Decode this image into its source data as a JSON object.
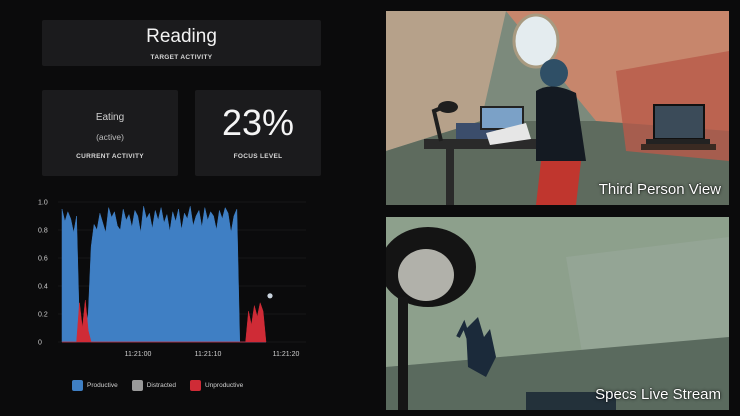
{
  "target": {
    "value": "Reading",
    "caption": "TARGET ACTIVITY"
  },
  "current": {
    "activity": "Eating",
    "state": "(active)",
    "caption": "CURRENT ACTIVITY"
  },
  "focus": {
    "value": "23%",
    "caption": "FOCUS LEVEL"
  },
  "legend": [
    {
      "label": "Productive",
      "color": "#3f7fc4"
    },
    {
      "label": "Distracted",
      "color": "#9a9a9a"
    },
    {
      "label": "Unproductive",
      "color": "#cf2b36"
    }
  ],
  "chart_data": {
    "type": "area",
    "y_ticks": [
      "0",
      "0.2",
      "0.4",
      "0.6",
      "0.8",
      "1.0"
    ],
    "x_ticks": [
      "11:21:00",
      "11:21:10",
      "11:21:20"
    ],
    "ylim": [
      0,
      1
    ],
    "series": [
      {
        "name": "Productive",
        "color": "#3f7fc4",
        "values": [
          0.95,
          0.86,
          0.93,
          0.88,
          0.78,
          0.9,
          0.1,
          0.1,
          0.1,
          0.2,
          0.68,
          0.84,
          0.8,
          0.92,
          0.85,
          0.78,
          0.96,
          0.89,
          0.93,
          0.83,
          0.8,
          0.95,
          0.87,
          0.91,
          0.82,
          0.94,
          0.9,
          0.78,
          0.97,
          0.88,
          0.92,
          0.81,
          0.94,
          0.87,
          0.96,
          0.85,
          0.91,
          0.79,
          0.93,
          0.86,
          0.95,
          0.8,
          0.92,
          0.88,
          0.97,
          0.83,
          0.9,
          0.94,
          0.82,
          0.96,
          0.87,
          0.93,
          0.9,
          0.8,
          0.94,
          0.88,
          0.96,
          0.92,
          0.78,
          0.9,
          0.95,
          0,
          0,
          0,
          0,
          0,
          0,
          0,
          0,
          0,
          0
        ]
      },
      {
        "name": "Unproductive",
        "color": "#cf2b36",
        "values": [
          0,
          0,
          0,
          0,
          0,
          0,
          0.28,
          0.1,
          0.3,
          0.08,
          0,
          0,
          0,
          0,
          0,
          0,
          0,
          0,
          0,
          0,
          0,
          0,
          0,
          0,
          0,
          0,
          0,
          0,
          0,
          0,
          0,
          0,
          0,
          0,
          0,
          0,
          0,
          0,
          0,
          0,
          0,
          0,
          0,
          0,
          0,
          0,
          0,
          0,
          0,
          0,
          0,
          0,
          0,
          0,
          0,
          0,
          0,
          0,
          0,
          0,
          0,
          0,
          0,
          0,
          0.22,
          0.12,
          0.26,
          0.18,
          0.28,
          0.22,
          0
        ]
      }
    ],
    "marker": {
      "value": 0.33
    }
  },
  "videos": [
    {
      "label": "Third Person View"
    },
    {
      "label": "Specs Live Stream"
    }
  ]
}
